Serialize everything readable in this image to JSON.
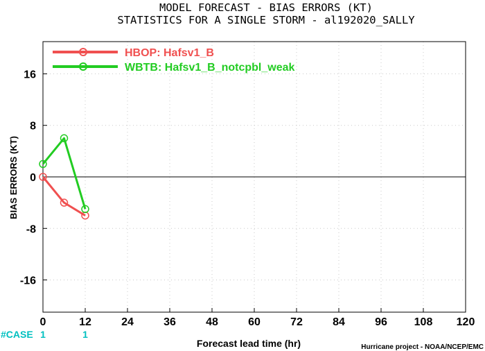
{
  "colors": {
    "series_hbop": "#f05050",
    "series_wbtb": "#22cc22",
    "case": "#00c0c0",
    "grid": "#c8c8c8"
  },
  "chart_data": {
    "type": "line",
    "title": "MODEL FORECAST - BIAS ERRORS (KT)",
    "subtitle": "STATISTICS FOR A SINGLE STORM - al192020_SALLY",
    "xlabel": "Forecast lead time (hr)",
    "ylabel": "BIAS ERRORS (KT)",
    "xlim": [
      0,
      120
    ],
    "ylim": [
      -21,
      21
    ],
    "x_ticks": [
      0,
      12,
      24,
      36,
      48,
      60,
      72,
      84,
      96,
      108,
      120
    ],
    "y_ticks": [
      -16,
      -8,
      0,
      8,
      16
    ],
    "grid": true,
    "legend_position": "top-left",
    "series": [
      {
        "name": "HBOP: Hafsv1_B",
        "x": [
          0,
          6,
          12
        ],
        "y": [
          0,
          -4,
          -6
        ],
        "color": "#f05050"
      },
      {
        "name": "WBTB: Hafsv1_B_notcpbl_weak",
        "x": [
          0,
          6,
          12
        ],
        "y": [
          2,
          6,
          -5
        ],
        "color": "#22cc22"
      }
    ],
    "case_label": "#CASE",
    "case_counts": [
      {
        "x": 0,
        "value": "1"
      },
      {
        "x": 12,
        "value": "1"
      }
    ]
  },
  "footer": "Hurricane project - NOAA/NCEP/EMC"
}
